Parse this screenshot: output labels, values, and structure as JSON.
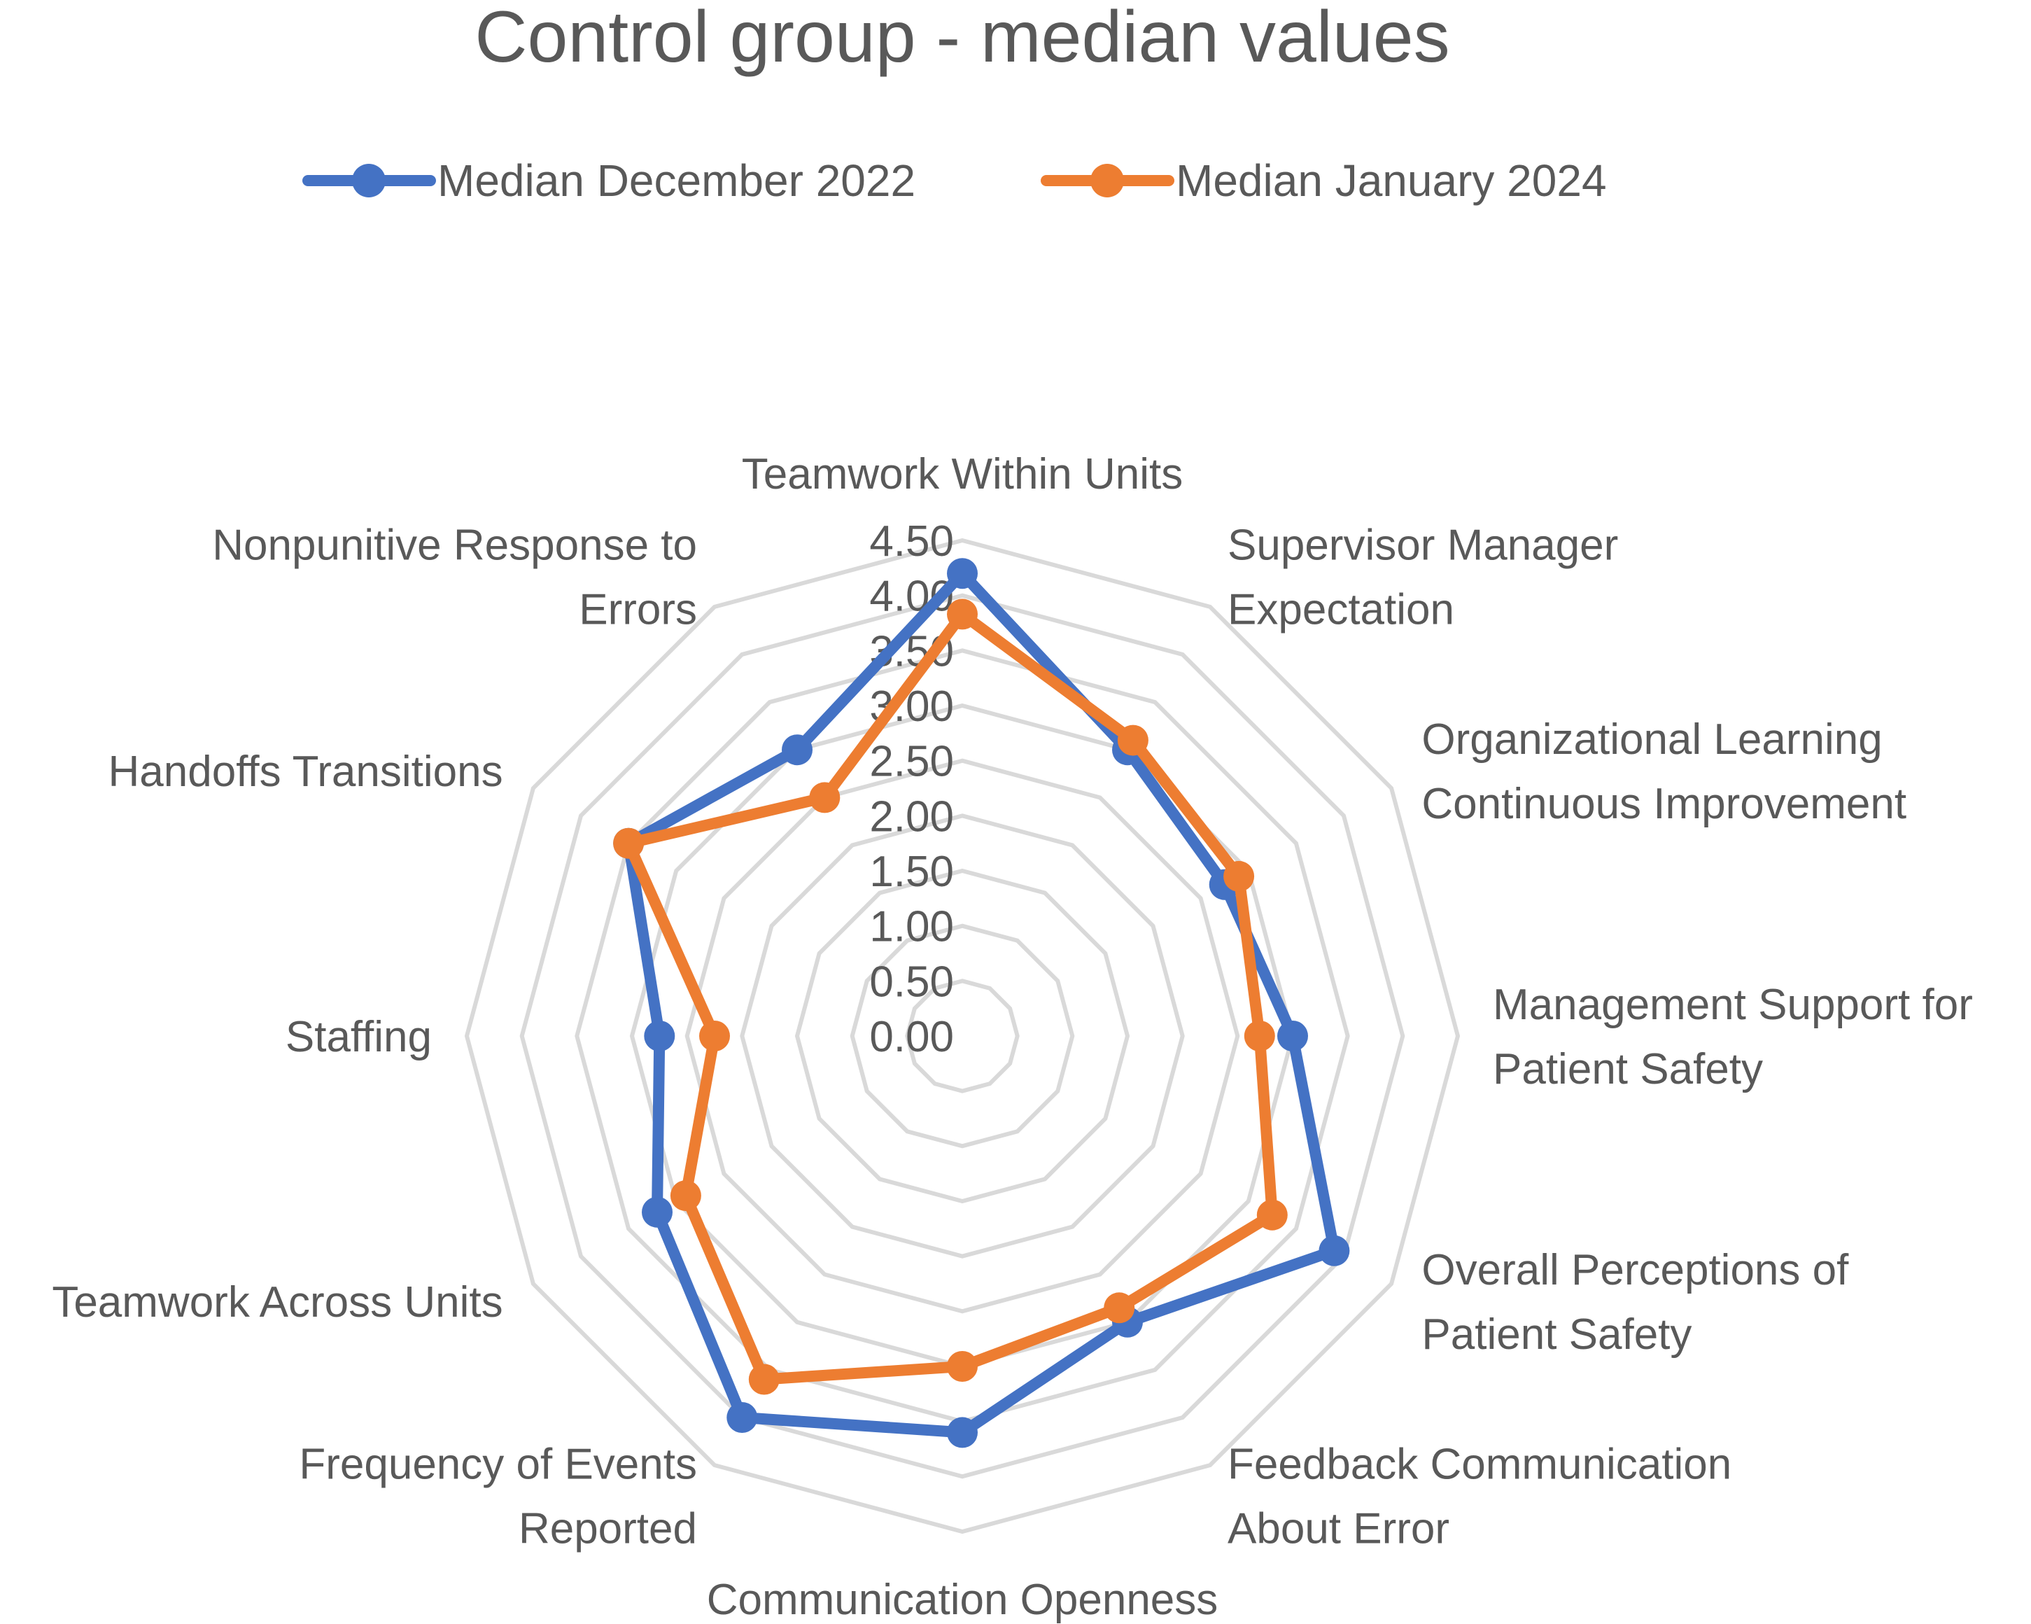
{
  "chart_data": {
    "type": "radar",
    "title": "Control group - median values",
    "legend_position": "top",
    "rmin": 0,
    "rmax": 4.5,
    "tick_step": 0.5,
    "tick_labels": [
      "0.00",
      "0.50",
      "1.00",
      "1.50",
      "2.00",
      "2.50",
      "3.00",
      "3.50",
      "4.00",
      "4.50"
    ],
    "categories": [
      "Teamwork Within Units",
      "Supervisor Manager Expectation",
      "Organizational Learning Continuous Improvement",
      "Management Support for Patient Safety",
      "Overall Perceptions of Patient Safety",
      "Feedback Communication About Error",
      "Communication Openness",
      "Frequency of Events Reported",
      "Teamwork Across Units",
      "Staffing",
      "Handoffs Transitions",
      "Nonpunitive Response to Errors"
    ],
    "category_label_lines": [
      [
        "Teamwork Within Units"
      ],
      [
        "Supervisor Manager",
        "Expectation"
      ],
      [
        "Organizational Learning",
        "Continuous Improvement"
      ],
      [
        "Management Support for",
        "Patient Safety"
      ],
      [
        "Overall Perceptions of",
        "Patient Safety"
      ],
      [
        "Feedback Communication",
        "About Error"
      ],
      [
        "Communication Openness"
      ],
      [
        "Frequency of Events",
        "Reported"
      ],
      [
        "Teamwork Across Units"
      ],
      [
        "Staffing"
      ],
      [
        "Handoffs Transitions"
      ],
      [
        "Nonpunitive Response to",
        "Errors"
      ]
    ],
    "series": [
      {
        "name": "Median December 2022",
        "color": "#4472c4",
        "values": [
          4.2,
          3.0,
          2.75,
          3.0,
          3.9,
          3.0,
          3.6,
          4.0,
          3.2,
          2.75,
          3.5,
          3.0
        ]
      },
      {
        "name": "Median January 2024",
        "color": "#ed7d31",
        "values": [
          3.83,
          3.1,
          2.9,
          2.7,
          3.25,
          2.85,
          3.0,
          3.6,
          2.9,
          2.25,
          3.5,
          2.5
        ]
      }
    ]
  }
}
